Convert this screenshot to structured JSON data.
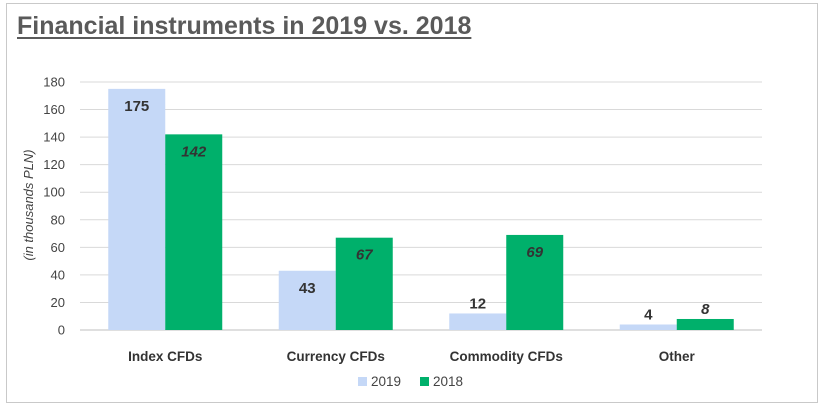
{
  "title": "Financial instruments in 2019 vs. 2018",
  "chart_data": {
    "type": "bar",
    "title": "Financial instruments in 2019 vs. 2018",
    "xlabel": "",
    "ylabel": "(in thousands  PLN)",
    "ylim": [
      0,
      180
    ],
    "yticks": [
      0,
      20,
      40,
      60,
      80,
      100,
      120,
      140,
      160,
      180
    ],
    "grid": true,
    "legend": "bottom",
    "categories": [
      "Index CFDs",
      "Currency CFDs",
      "Commodity CFDs",
      "Other"
    ],
    "series": [
      {
        "name": "2019",
        "values": [
          175,
          43,
          12,
          4
        ],
        "color": "#c5d8f7",
        "labels": [
          "175",
          "43",
          "12",
          "4"
        ]
      },
      {
        "name": "2018",
        "values": [
          142,
          67,
          69,
          8
        ],
        "color": "#00b06b",
        "labels": [
          "142",
          "67",
          "69",
          "8"
        ]
      }
    ]
  }
}
